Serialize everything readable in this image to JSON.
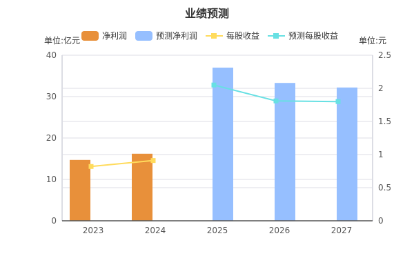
{
  "title": "业绩预测",
  "left_unit": "单位:亿元",
  "right_unit": "单位:元",
  "colors": {
    "net_profit": "#E8903A",
    "forecast_net_profit": "#96BFFF",
    "eps": "#FFDB5C",
    "forecast_eps": "#67E0E3"
  },
  "chart_data": {
    "type": "bar",
    "title": "业绩预测",
    "categories": [
      "2023",
      "2024",
      "2025",
      "2026",
      "2027"
    ],
    "series": [
      {
        "name": "净利润",
        "type": "bar",
        "axis": "left",
        "values": [
          14.7,
          16.2,
          null,
          null,
          null
        ]
      },
      {
        "name": "预测净利润",
        "type": "bar",
        "axis": "left",
        "values": [
          null,
          null,
          37.0,
          33.3,
          32.2
        ]
      },
      {
        "name": "每股收益",
        "type": "line",
        "axis": "right",
        "values": [
          0.82,
          0.91,
          null,
          null,
          null
        ]
      },
      {
        "name": "预测每股收益",
        "type": "line",
        "axis": "right",
        "values": [
          null,
          null,
          2.05,
          1.81,
          1.8
        ]
      }
    ],
    "ylim_left": [
      0,
      40
    ],
    "yticks_left": [
      "0",
      "10",
      "20",
      "30",
      "40"
    ],
    "ylim_right": [
      0,
      2.5
    ],
    "yticks_right": [
      "0",
      "0.5",
      "1",
      "1.5",
      "2",
      "2.5"
    ],
    "legend": "top"
  }
}
